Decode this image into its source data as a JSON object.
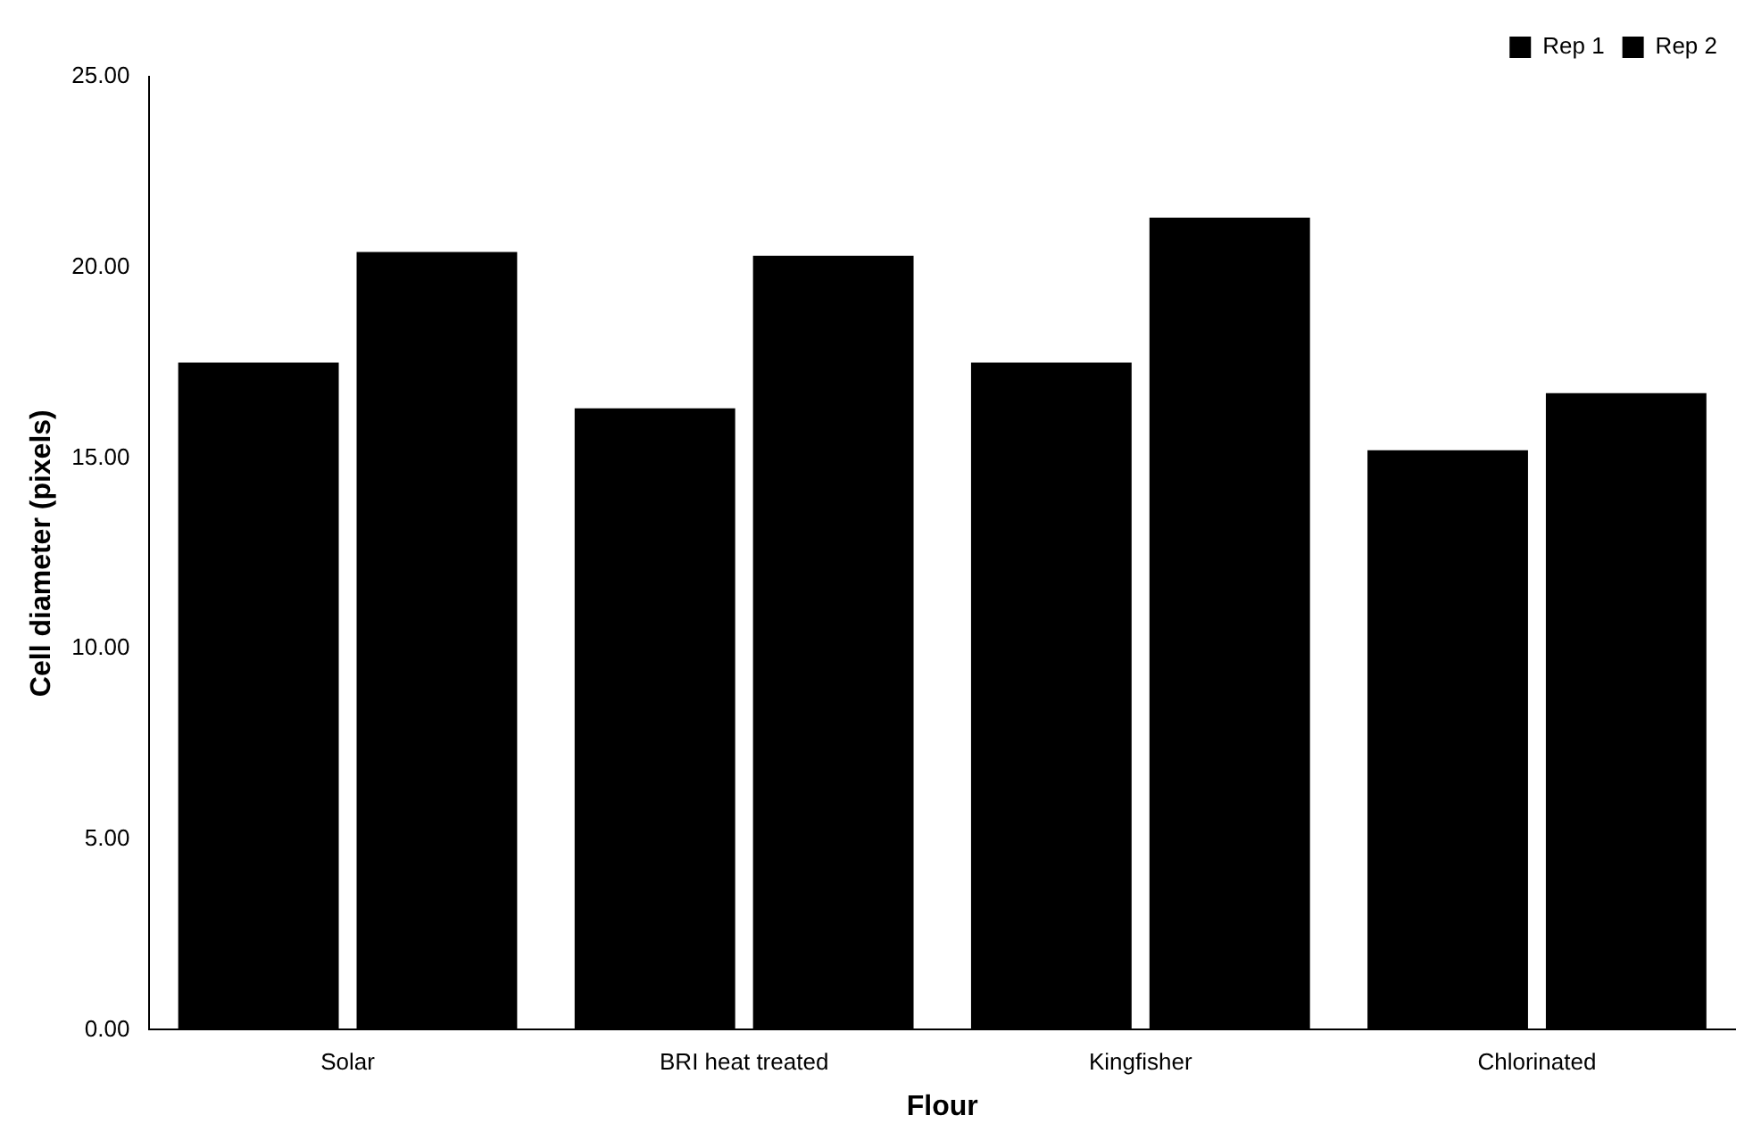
{
  "chart_data": {
    "type": "bar",
    "xlabel": "Flour",
    "ylabel": "Cell diameter (pixels)",
    "categories": [
      "Solar",
      "BRI heat treated",
      "Kingfisher",
      "Chlorinated"
    ],
    "series": [
      {
        "name": "Rep 1",
        "color": "#000000",
        "values": [
          17.5,
          16.3,
          17.5,
          15.2
        ]
      },
      {
        "name": "Rep 2",
        "color": "#000000",
        "values": [
          20.4,
          20.3,
          21.3,
          16.7
        ]
      }
    ],
    "ylim": [
      0,
      25
    ],
    "yticks": [
      {
        "value": 0,
        "label": "0.00"
      },
      {
        "value": 5,
        "label": "5.00"
      },
      {
        "value": 10,
        "label": "10.00"
      },
      {
        "value": 15,
        "label": "15.00"
      },
      {
        "value": 20,
        "label": "20.00"
      },
      {
        "value": 25,
        "label": "25.00"
      }
    ],
    "grid": false,
    "legend": "top right"
  }
}
